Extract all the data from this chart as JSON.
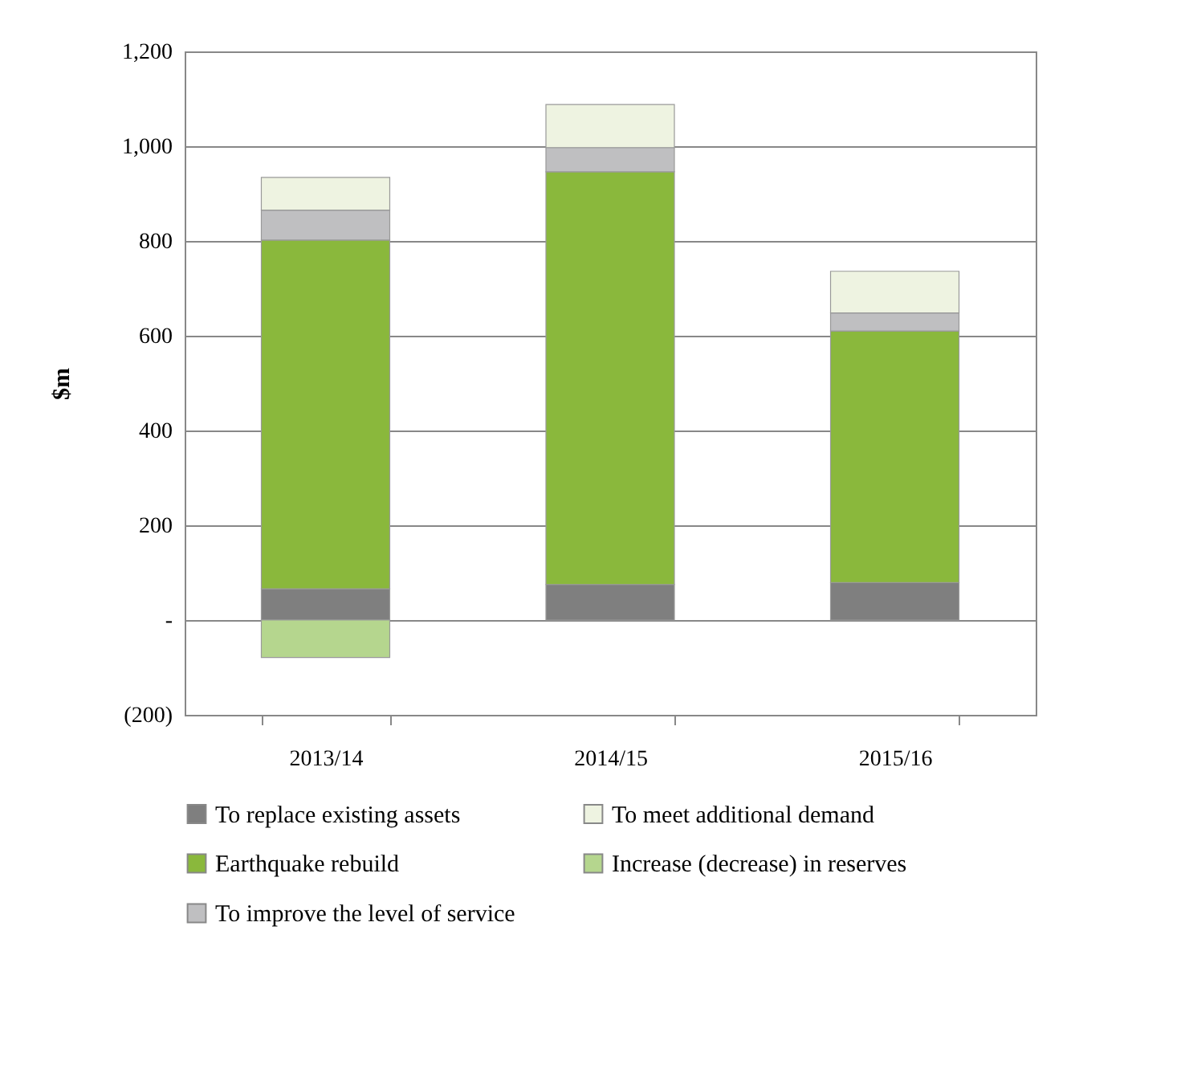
{
  "chart_data": {
    "type": "bar",
    "stacked": true,
    "ylabel": "$m",
    "categories": [
      "2013/14",
      "2014/15",
      "2015/16"
    ],
    "series": [
      {
        "name": "To replace existing assets",
        "color": "#7f7f7f",
        "values": [
          66,
          75,
          79
        ]
      },
      {
        "name": "Earthquake rebuild",
        "color": "#8ab83c",
        "values": [
          736,
          871,
          531
        ]
      },
      {
        "name": "To improve the level of service",
        "color": "#bfbfc1",
        "values": [
          63,
          51,
          38
        ]
      },
      {
        "name": "To meet additional demand",
        "color": "#eef3e1",
        "values": [
          69,
          91,
          88
        ]
      },
      {
        "name": "Increase (decrease) in reserves",
        "color": "#b5d68e",
        "values": [
          -79,
          null,
          null
        ]
      }
    ],
    "ylim": [
      -200,
      1200
    ],
    "yticks": [
      {
        "value": -200,
        "label": "(200)"
      },
      {
        "value": 0,
        "label": "-"
      },
      200,
      400,
      600,
      800,
      {
        "value": 1000,
        "label": "1,000"
      },
      {
        "value": 1200,
        "label": "1,200"
      }
    ],
    "grid": "y",
    "legend": "bottom"
  }
}
